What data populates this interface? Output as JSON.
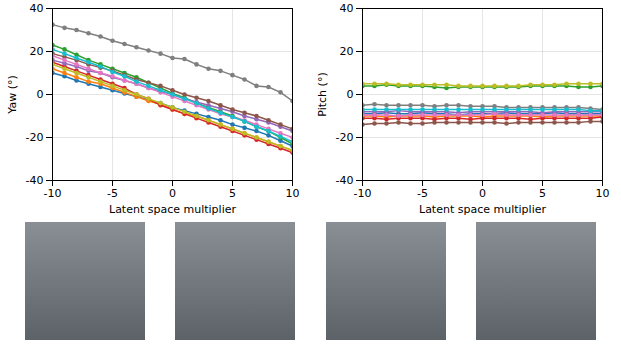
{
  "chart_data": [
    {
      "type": "line",
      "xlabel": "Latent space multiplier",
      "ylabel": "Yaw (°)",
      "xlim": [
        -10,
        10
      ],
      "xticks": [
        -10,
        -5,
        0,
        5,
        10
      ],
      "ylim": [
        -40,
        40
      ],
      "yticks": [
        -40,
        -20,
        0,
        20,
        40
      ],
      "grid": true,
      "marker": "circle",
      "line_style": "solid",
      "x": [
        -10,
        -9,
        -8,
        -7,
        -6,
        -5,
        -4,
        -3,
        -2,
        -1,
        0,
        1,
        2,
        3,
        4,
        5,
        6,
        7,
        8,
        9,
        10
      ],
      "series": [
        {
          "color": "#1f77b4",
          "values": [
            10,
            8.5,
            6.5,
            5,
            3.5,
            2,
            0.5,
            -1,
            -2.5,
            -4,
            -6,
            -7.5,
            -9,
            -10.5,
            -12,
            -14,
            -15.5,
            -17,
            -19,
            -21.5,
            -24
          ]
        },
        {
          "color": "#ff7f0e",
          "values": [
            12,
            10,
            8,
            6,
            5,
            3,
            1,
            -1,
            -3,
            -4.5,
            -7,
            -9,
            -10,
            -12,
            -14,
            -16,
            -18,
            -20,
            -22,
            -24,
            -26
          ]
        },
        {
          "color": "#2ca02c",
          "values": [
            23,
            21,
            18.5,
            16,
            14,
            12,
            10,
            8,
            5.5,
            3,
            0.5,
            -1.5,
            -4,
            -6,
            -8,
            -10,
            -12.5,
            -15,
            -17,
            -20,
            -23
          ]
        },
        {
          "color": "#d62728",
          "values": [
            15,
            13,
            11,
            9,
            7,
            5,
            3,
            0,
            -2,
            -5,
            -7,
            -9,
            -11,
            -13,
            -15,
            -17,
            -19,
            -21,
            -23,
            -25,
            -27
          ]
        },
        {
          "color": "#9467bd",
          "values": [
            16,
            14.5,
            13,
            11,
            10,
            8,
            6.5,
            5,
            3,
            1.5,
            0,
            -2,
            -3.5,
            -5,
            -6.5,
            -8,
            -10,
            -11.5,
            -13,
            -15,
            -17
          ]
        },
        {
          "color": "#8c564b",
          "values": [
            19,
            17.5,
            16,
            14,
            12.5,
            11,
            9,
            7,
            5.5,
            4,
            2,
            0,
            -1.5,
            -3,
            -5,
            -7,
            -8.5,
            -10,
            -12,
            -14,
            -16
          ]
        },
        {
          "color": "#e377c2",
          "values": [
            18,
            16,
            14,
            12,
            10,
            8.5,
            6.5,
            5,
            3,
            1,
            -1,
            -3,
            -5,
            -7,
            -9,
            -10.5,
            -12,
            -14,
            -16,
            -18,
            -20
          ]
        },
        {
          "color": "#7f7f7f",
          "values": [
            32.5,
            31,
            30,
            28.5,
            27,
            25,
            23.5,
            22,
            20.5,
            19,
            17,
            16.5,
            14,
            12,
            11,
            9,
            7,
            4,
            3.5,
            1,
            -3
          ]
        },
        {
          "color": "#bcbd22",
          "values": [
            14,
            12,
            10,
            8,
            6,
            4,
            2,
            0,
            -2,
            -4,
            -6,
            -8,
            -10,
            -12,
            -14,
            -16,
            -18,
            -20,
            -22,
            -24,
            -26
          ]
        },
        {
          "color": "#17becf",
          "values": [
            21,
            19,
            17,
            15,
            13,
            10.5,
            8.5,
            6,
            4,
            2,
            0,
            -2,
            -4,
            -6.5,
            -8.5,
            -10.5,
            -12.5,
            -15,
            -17,
            -19.5,
            -22
          ]
        }
      ]
    },
    {
      "type": "line",
      "xlabel": "Latent space multiplier",
      "ylabel": "Pitch (°)",
      "xlim": [
        -10,
        10
      ],
      "xticks": [
        -10,
        -5,
        0,
        5,
        10
      ],
      "ylim": [
        -40,
        40
      ],
      "yticks": [
        -40,
        -20,
        0,
        20,
        40
      ],
      "grid": true,
      "marker": "circle",
      "line_style": "solid",
      "x": [
        -10,
        -9,
        -8,
        -7,
        -6,
        -5,
        -4,
        -3,
        -2,
        -1,
        0,
        1,
        2,
        3,
        4,
        5,
        6,
        7,
        8,
        9,
        10
      ],
      "series": [
        {
          "color": "#1f77b4",
          "values": [
            -9,
            -9,
            -8.5,
            -9,
            -9,
            -8.5,
            -9,
            -9,
            -9.5,
            -9,
            -9,
            -9,
            -8.5,
            -9,
            -9,
            -9,
            -8.5,
            -9,
            -9,
            -9,
            -9
          ]
        },
        {
          "color": "#ff7f0e",
          "values": [
            -10,
            -10,
            -10.5,
            -10,
            -10,
            -10,
            -10.5,
            -10,
            -10,
            -10,
            -10.5,
            -10,
            -10,
            -10,
            -10,
            -10.5,
            -10,
            -10,
            -10,
            -10,
            -10
          ]
        },
        {
          "color": "#2ca02c",
          "values": [
            4,
            4,
            4.5,
            4,
            4,
            4,
            3.5,
            3,
            3.5,
            3.5,
            3.5,
            3.5,
            3.5,
            3.5,
            4,
            4,
            4,
            4,
            3.5,
            3.5,
            4
          ]
        },
        {
          "color": "#d62728",
          "values": [
            -11,
            -11,
            -11.5,
            -11,
            -11,
            -11,
            -11.5,
            -11,
            -11,
            -11.5,
            -11,
            -11,
            -11,
            -11,
            -11.5,
            -11,
            -11,
            -11,
            -11,
            -11,
            -10.5
          ]
        },
        {
          "color": "#9467bd",
          "values": [
            -8,
            -8,
            -8,
            -7.5,
            -8,
            -8,
            -8,
            -8,
            -8.5,
            -8,
            -8,
            -8,
            -8,
            -8,
            -8,
            -8.5,
            -8,
            -8,
            -8,
            -8,
            -8
          ]
        },
        {
          "color": "#8c564b",
          "values": [
            -14,
            -13.5,
            -13.5,
            -13,
            -13.5,
            -13.5,
            -13,
            -13,
            -13,
            -13,
            -13,
            -13,
            -13.5,
            -13,
            -13,
            -13,
            -13,
            -13,
            -13,
            -12.5,
            -12.5
          ]
        },
        {
          "color": "#e377c2",
          "values": [
            -9.5,
            -9.5,
            -9.5,
            -10,
            -9.5,
            -9.5,
            -9.5,
            -9.5,
            -9.5,
            -9.5,
            -9.5,
            -9,
            -9.5,
            -9.5,
            -9.5,
            -9.5,
            -9.5,
            -9.5,
            -9.5,
            -9.5,
            -9.5
          ]
        },
        {
          "color": "#7f7f7f",
          "values": [
            -5,
            -4.5,
            -5,
            -5,
            -5,
            -5,
            -5.5,
            -5,
            -5,
            -5.5,
            -5.5,
            -5.5,
            -6,
            -6,
            -6,
            -6,
            -6,
            -6,
            -6,
            -6.5,
            -7
          ]
        },
        {
          "color": "#bcbd22",
          "values": [
            5,
            5,
            5,
            4.5,
            4.5,
            4.5,
            4.5,
            4.5,
            4,
            4,
            4,
            4,
            4,
            4,
            4.5,
            4.5,
            4.5,
            5,
            5,
            5,
            5
          ]
        },
        {
          "color": "#17becf",
          "values": [
            -7,
            -7,
            -7,
            -7,
            -7,
            -7,
            -7,
            -7,
            -7,
            -7,
            -7,
            -7,
            -7,
            -7,
            -7,
            -7,
            -7,
            -7,
            -7,
            -7.5,
            -7.5
          ]
        }
      ]
    }
  ]
}
